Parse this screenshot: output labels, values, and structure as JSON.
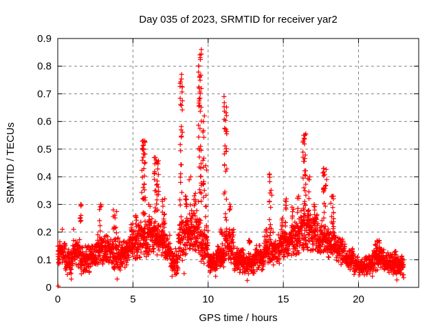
{
  "page": {
    "background": "#ffffff"
  },
  "style": {
    "marker_color": "#ff0000",
    "grid_color": "#808080",
    "axis_color": "#000000",
    "text_color": "#000000"
  },
  "chart_data": {
    "type": "scatter",
    "title": "Day 035 of 2023, SRMTID for receiver yar2",
    "xlabel": "GPS time / hours",
    "ylabel": "SRMTID / TECUs",
    "xlim": [
      0,
      24
    ],
    "ylim": [
      0,
      0.9
    ],
    "xticks": {
      "values": [
        0,
        5,
        10,
        15,
        20
      ],
      "labels": [
        "0",
        "5",
        "10",
        "15",
        "20"
      ]
    },
    "yticks": {
      "values": [
        0,
        0.1,
        0.2,
        0.3,
        0.4,
        0.5,
        0.6,
        0.7,
        0.8,
        0.9
      ],
      "labels": [
        "0",
        "0.1",
        "0.2",
        "0.3",
        "0.4",
        "0.5",
        "0.6",
        "0.7",
        "0.8",
        "0.9"
      ]
    },
    "grid": true,
    "legend": "none",
    "marker": {
      "shape": "plus",
      "color": "#ff0000",
      "size": 7
    },
    "series_name": "SRMTID",
    "baseline_bands": [
      [
        0.0,
        0.5,
        0.08,
        0.17
      ],
      [
        0.5,
        1.0,
        0.04,
        0.15
      ],
      [
        1.0,
        1.5,
        0.07,
        0.18
      ],
      [
        1.5,
        2.1,
        0.04,
        0.16
      ],
      [
        2.1,
        2.6,
        0.07,
        0.16
      ],
      [
        2.6,
        3.2,
        0.08,
        0.2
      ],
      [
        3.2,
        3.7,
        0.08,
        0.19
      ],
      [
        3.7,
        4.2,
        0.05,
        0.18
      ],
      [
        4.2,
        4.7,
        0.07,
        0.17
      ],
      [
        4.7,
        5.3,
        0.1,
        0.21
      ],
      [
        5.3,
        5.9,
        0.1,
        0.25
      ],
      [
        5.9,
        6.5,
        0.11,
        0.25
      ],
      [
        6.5,
        7.1,
        0.11,
        0.24
      ],
      [
        7.1,
        7.5,
        0.08,
        0.2
      ],
      [
        7.5,
        8.0,
        0.04,
        0.15
      ],
      [
        8.0,
        8.5,
        0.08,
        0.25
      ],
      [
        8.5,
        9.0,
        0.12,
        0.3
      ],
      [
        9.0,
        9.5,
        0.12,
        0.28
      ],
      [
        9.5,
        10.0,
        0.08,
        0.22
      ],
      [
        10.0,
        10.6,
        0.05,
        0.13
      ],
      [
        10.6,
        11.1,
        0.07,
        0.16
      ],
      [
        11.1,
        11.7,
        0.08,
        0.22
      ],
      [
        11.7,
        12.4,
        0.05,
        0.15
      ],
      [
        12.4,
        13.1,
        0.04,
        0.13
      ],
      [
        13.1,
        13.7,
        0.06,
        0.16
      ],
      [
        13.7,
        14.3,
        0.07,
        0.2
      ],
      [
        14.3,
        14.9,
        0.08,
        0.2
      ],
      [
        14.9,
        15.5,
        0.1,
        0.23
      ],
      [
        15.5,
        16.1,
        0.11,
        0.26
      ],
      [
        16.1,
        16.7,
        0.13,
        0.3
      ],
      [
        16.7,
        17.3,
        0.12,
        0.28
      ],
      [
        17.3,
        17.9,
        0.11,
        0.25
      ],
      [
        17.9,
        18.5,
        0.1,
        0.22
      ],
      [
        18.5,
        19.1,
        0.08,
        0.18
      ],
      [
        19.1,
        19.7,
        0.06,
        0.14
      ],
      [
        19.7,
        20.4,
        0.04,
        0.11
      ],
      [
        20.4,
        21.0,
        0.04,
        0.12
      ],
      [
        21.0,
        21.7,
        0.06,
        0.16
      ],
      [
        21.7,
        22.3,
        0.05,
        0.13
      ],
      [
        22.3,
        23.0,
        0.04,
        0.12
      ]
    ],
    "spike_clusters": [
      [
        1.52,
        0.06,
        0.18,
        0.3,
        8
      ],
      [
        2.85,
        0.08,
        0.18,
        0.3,
        8
      ],
      [
        3.8,
        0.12,
        0.17,
        0.28,
        12
      ],
      [
        4.95,
        0.08,
        0.17,
        0.23,
        8
      ],
      [
        5.2,
        0.06,
        0.17,
        0.26,
        7
      ],
      [
        5.7,
        0.12,
        0.18,
        0.53,
        42
      ],
      [
        6.1,
        0.08,
        0.16,
        0.3,
        10
      ],
      [
        6.55,
        0.18,
        0.16,
        0.47,
        36
      ],
      [
        7.05,
        0.1,
        0.14,
        0.32,
        14
      ],
      [
        8.2,
        0.09,
        0.22,
        0.77,
        30
      ],
      [
        8.55,
        0.08,
        0.12,
        0.33,
        10
      ],
      [
        8.8,
        0.07,
        0.18,
        0.4,
        10
      ],
      [
        9.1,
        0.08,
        0.16,
        0.34,
        10
      ],
      [
        9.45,
        0.1,
        0.28,
        0.86,
        46
      ],
      [
        9.7,
        0.05,
        0.22,
        0.62,
        14
      ],
      [
        9.85,
        0.06,
        0.13,
        0.44,
        9
      ],
      [
        10.9,
        0.06,
        0.1,
        0.21,
        7
      ],
      [
        11.15,
        0.1,
        0.24,
        0.69,
        30
      ],
      [
        11.45,
        0.07,
        0.13,
        0.3,
        9
      ],
      [
        12.75,
        0.05,
        0.1,
        0.17,
        5
      ],
      [
        13.9,
        0.06,
        0.1,
        0.21,
        6
      ],
      [
        14.15,
        0.09,
        0.18,
        0.41,
        15
      ],
      [
        14.9,
        0.06,
        0.13,
        0.25,
        7
      ],
      [
        15.15,
        0.07,
        0.16,
        0.32,
        10
      ],
      [
        15.6,
        0.07,
        0.14,
        0.29,
        8
      ],
      [
        16.0,
        0.07,
        0.18,
        0.33,
        9
      ],
      [
        16.4,
        0.1,
        0.24,
        0.555,
        30
      ],
      [
        16.7,
        0.07,
        0.18,
        0.4,
        10
      ],
      [
        17.1,
        0.07,
        0.14,
        0.3,
        8
      ],
      [
        17.75,
        0.13,
        0.18,
        0.43,
        20
      ],
      [
        18.25,
        0.1,
        0.14,
        0.33,
        14
      ],
      [
        19.5,
        0.1,
        0.06,
        0.14,
        8
      ],
      [
        21.3,
        0.25,
        0.07,
        0.17,
        18
      ],
      [
        22.5,
        0.15,
        0.05,
        0.13,
        10
      ]
    ],
    "outlier_points": [
      [
        0.03,
        0.005
      ],
      [
        0.3,
        0.21
      ],
      [
        0.9,
        0.03
      ],
      [
        1.05,
        0.21
      ],
      [
        3.95,
        0.03
      ],
      [
        7.6,
        0.04
      ],
      [
        8.4,
        0.05
      ],
      [
        10.5,
        0.04
      ],
      [
        12.6,
        0.025
      ],
      [
        22.55,
        0.027
      ],
      [
        23.0,
        0.035
      ]
    ],
    "sampling": {
      "seed": 42,
      "points_per_hour": 110
    }
  }
}
